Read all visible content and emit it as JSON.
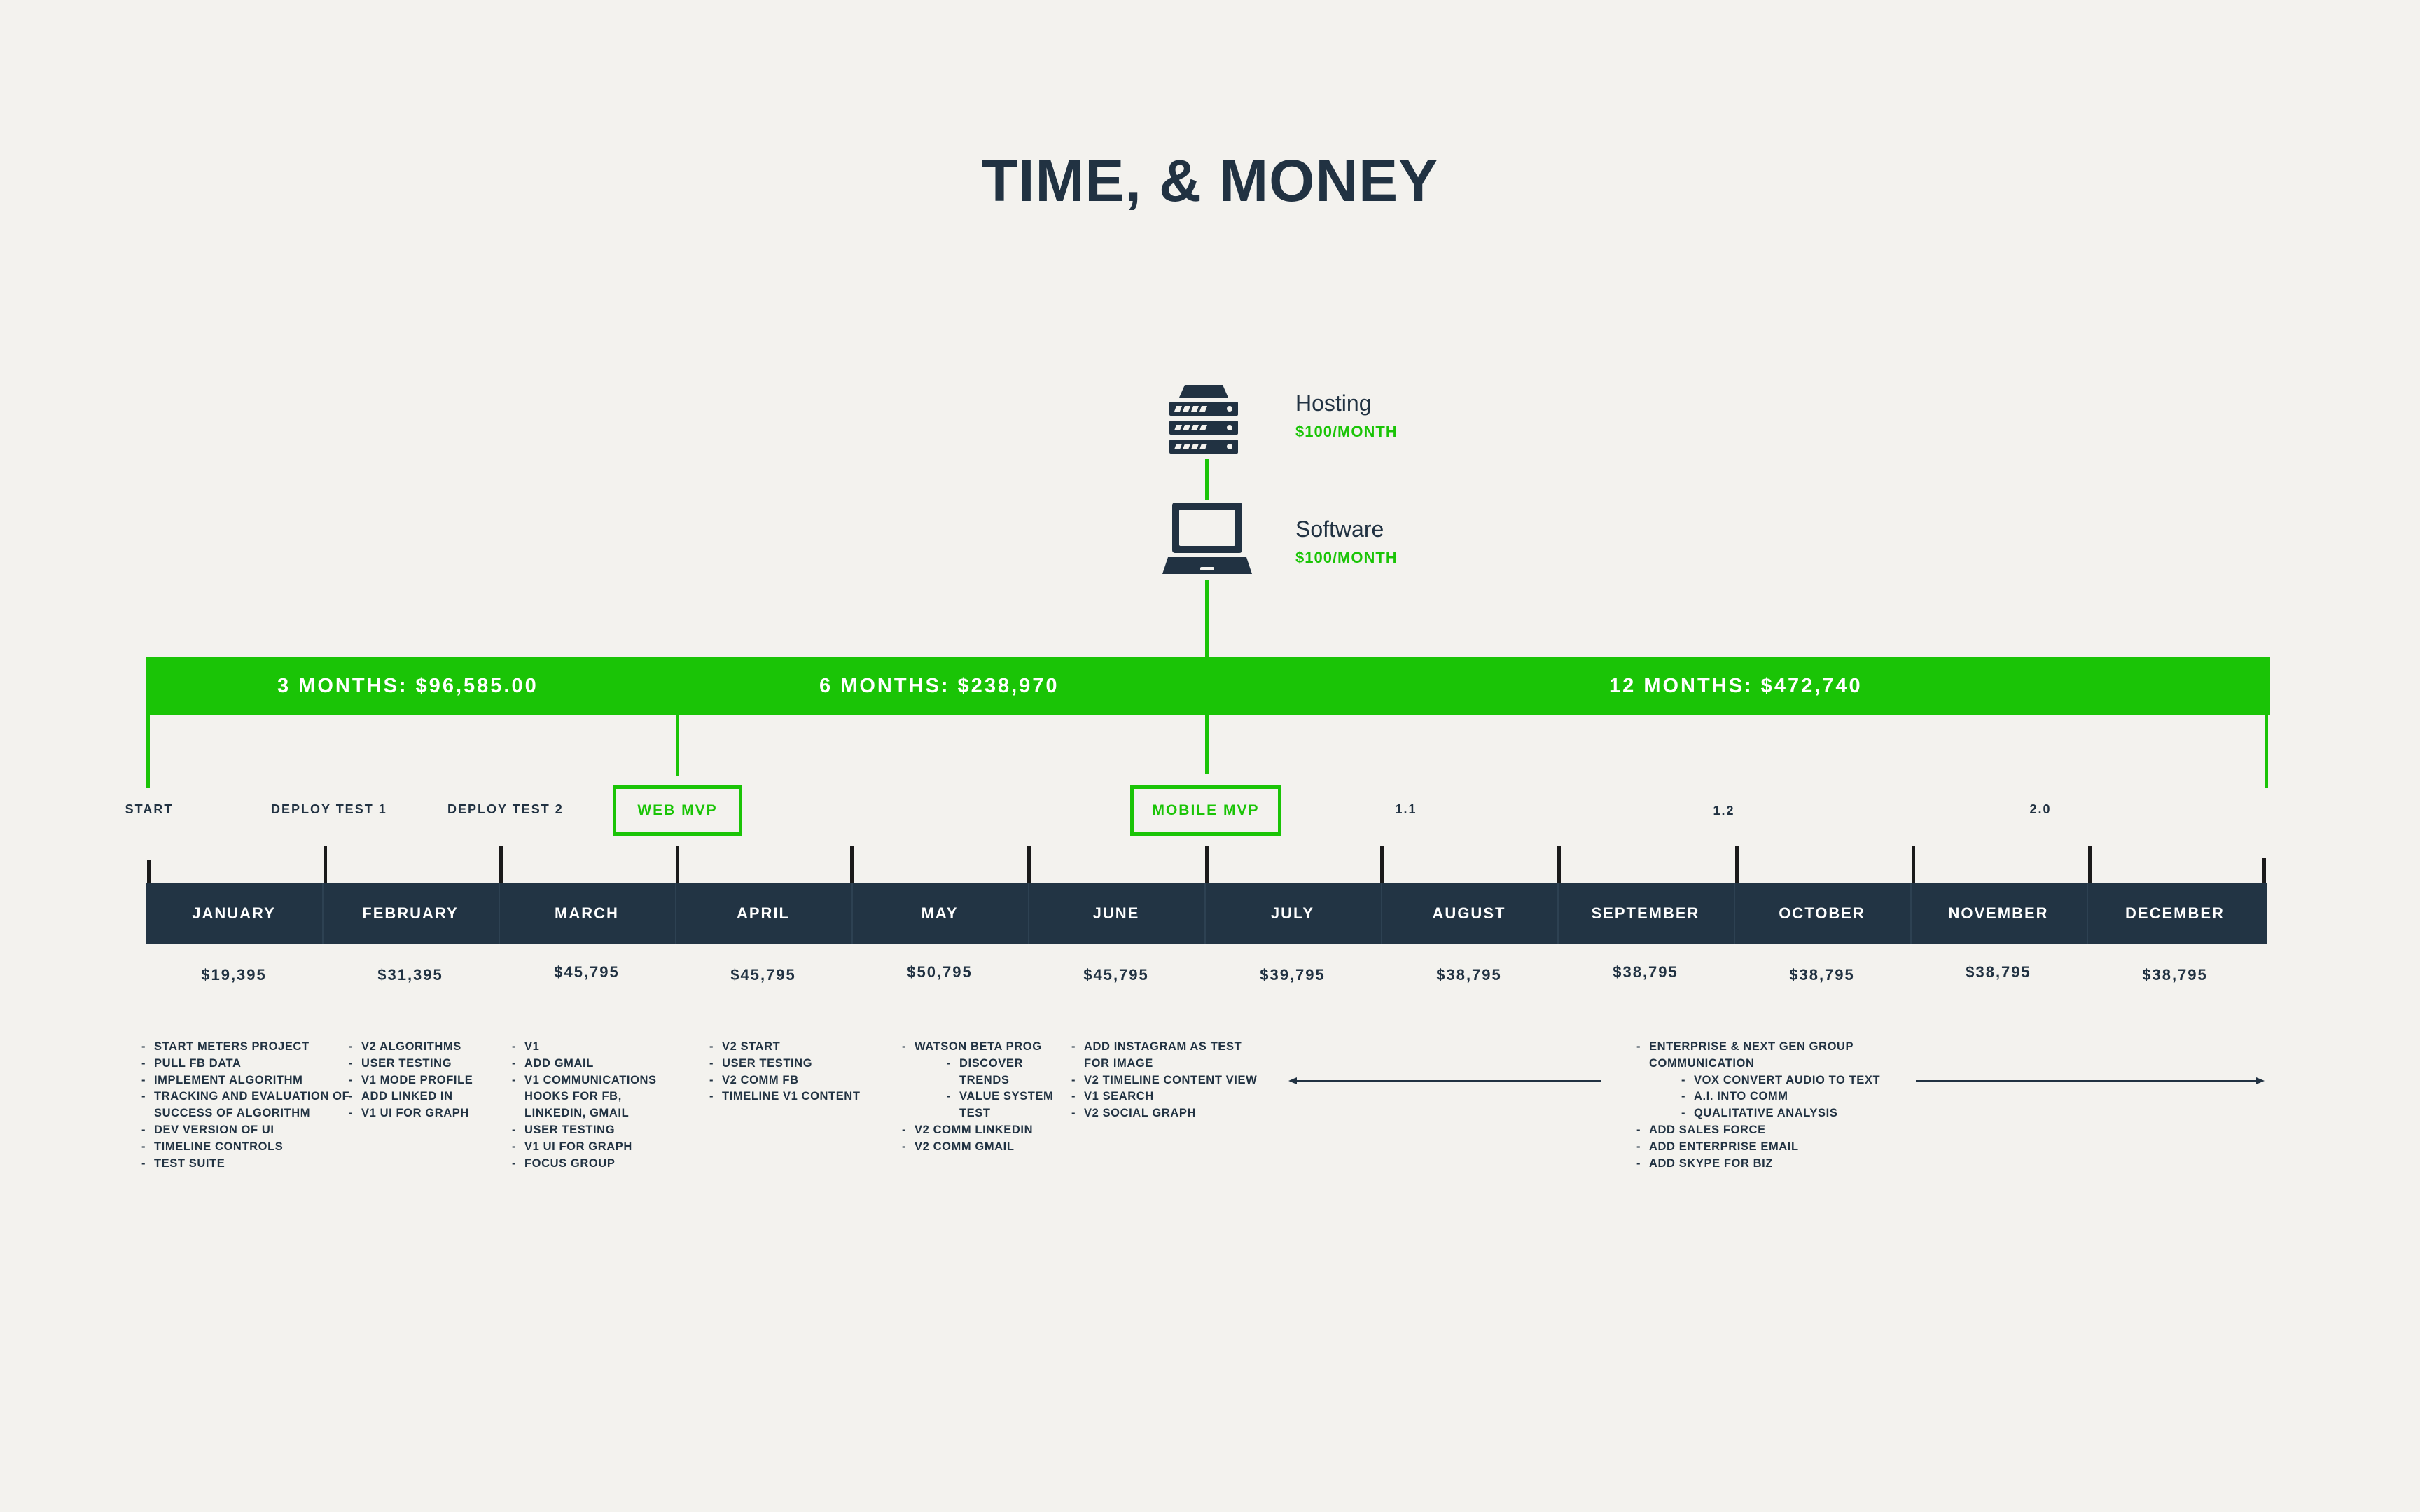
{
  "title": "TIME, & MONEY",
  "services": [
    {
      "name": "Hosting",
      "cost": "$100/MONTH",
      "icon": "server-icon"
    },
    {
      "name": "Software",
      "cost": "$100/MONTH",
      "icon": "laptop-icon"
    }
  ],
  "periods": [
    {
      "label": "3 MONTHS: $96,585.00"
    },
    {
      "label": "6 MONTHS: $238,970"
    },
    {
      "label": "12 MONTHS: $472,740"
    }
  ],
  "milestones": {
    "start": "START",
    "deploy1": "DEPLOY TEST 1",
    "deploy2": "DEPLOY TEST 2",
    "web_mvp": "WEB MVP",
    "mobile_mvp": "MOBILE MVP",
    "v11": "1.1",
    "v12": "1.2",
    "v20": "2.0"
  },
  "months": [
    {
      "name": "JANUARY",
      "cost": "$19,395"
    },
    {
      "name": "FEBRUARY",
      "cost": "$31,395"
    },
    {
      "name": "MARCH",
      "cost": "$45,795"
    },
    {
      "name": "APRIL",
      "cost": "$45,795"
    },
    {
      "name": "MAY",
      "cost": "$50,795"
    },
    {
      "name": "JUNE",
      "cost": "$45,795"
    },
    {
      "name": "JULY",
      "cost": "$39,795"
    },
    {
      "name": "AUGUST",
      "cost": "$38,795"
    },
    {
      "name": "SEPTEMBER",
      "cost": "$38,795"
    },
    {
      "name": "OCTOBER",
      "cost": "$38,795"
    },
    {
      "name": "NOVEMBER",
      "cost": "$38,795"
    },
    {
      "name": "DECEMBER",
      "cost": "$38,795"
    }
  ],
  "tasks": {
    "january": [
      "START METERS PROJECT",
      "PULL FB DATA",
      "IMPLEMENT ALGORITHM",
      "TRACKING AND EVALUATION OF",
      "SUCCESS OF ALGORITHM",
      "DEV VERSION OF UI",
      "TIMELINE CONTROLS",
      "TEST SUITE"
    ],
    "february": [
      "V2 ALGORITHMS",
      "USER TESTING",
      "V1 MODE PROFILE",
      "ADD LINKED IN",
      "V1 UI FOR GRAPH"
    ],
    "march": [
      "V1",
      "ADD GMAIL",
      "V1 COMMUNICATIONS",
      "HOOKS FOR FB,",
      "LINKEDIN, GMAIL",
      "USER TESTING",
      "V1 UI FOR GRAPH",
      "FOCUS GROUP"
    ],
    "april": [
      "V2 START",
      "USER TESTING",
      "V2 COMM FB",
      "TIMELINE V1 CONTENT"
    ],
    "may": [
      "WATSON BETA PROG",
      "DISCOVER",
      "TRENDS",
      "VALUE SYSTEM",
      "TEST",
      "V2 COMM LINKEDIN",
      "V2 COMM GMAIL"
    ],
    "june": [
      "ADD INSTAGRAM AS TEST",
      "FOR IMAGE",
      "V2 TIMELINE CONTENT VIEW",
      "V1 SEARCH",
      "V2 SOCIAL GRAPH"
    ],
    "september": [
      "ENTERPRISE & NEXT GEN GROUP",
      "COMMUNICATION",
      "VOX CONVERT AUDIO TO TEXT",
      "A.I. INTO COMM",
      "QUALITATIVE ANALYSIS",
      "ADD SALES FORCE",
      "ADD ENTERPRISE EMAIL",
      "ADD SKYPE FOR BIZ"
    ]
  },
  "colors": {
    "accent": "#1ac406",
    "navy": "#223444",
    "background": "#f3f2ee"
  }
}
